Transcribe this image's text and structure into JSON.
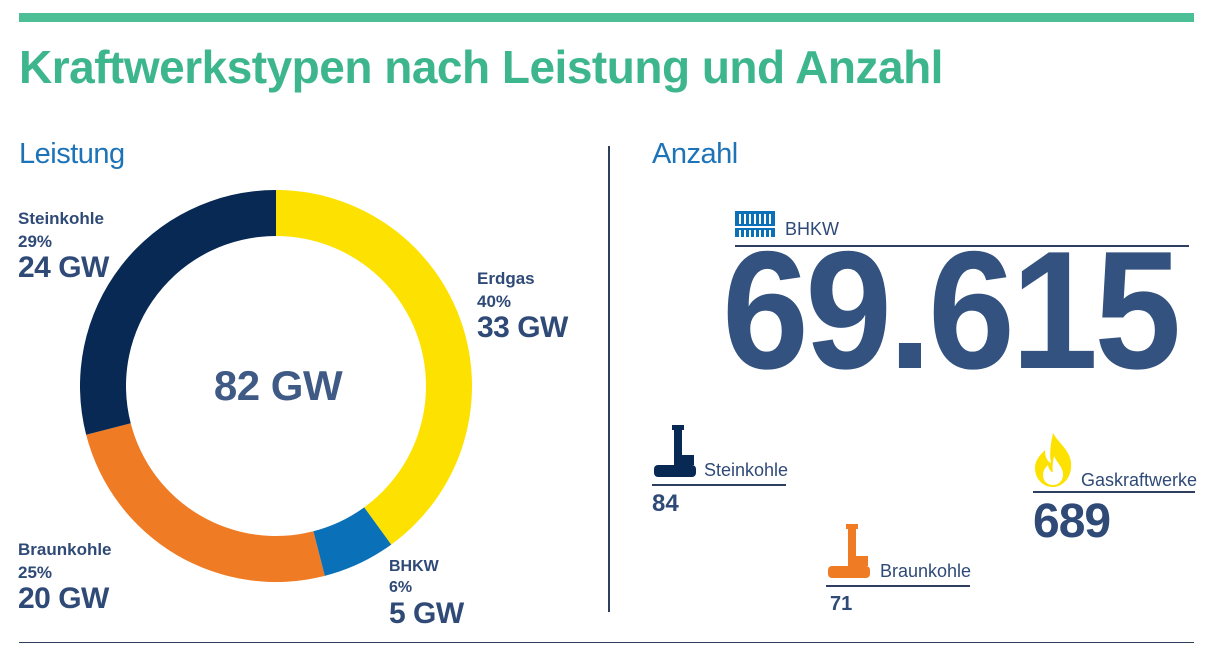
{
  "title": "Kraftwerkstypen nach Leistung und Anzahl",
  "left_heading": "Leistung",
  "right_heading": "Anzahl",
  "colors": {
    "Erdgas": "#fde100",
    "BHKW": "#0a70b8",
    "Braunkohle": "#ef7b24",
    "Steinkohle": "#092955",
    "accent": "#3db68e",
    "text": "#2f4a77"
  },
  "chart_data": [
    {
      "type": "pie",
      "subtitle": "Leistung",
      "center_label": "82 GW",
      "slices": [
        {
          "name": "Erdgas",
          "percent": 40,
          "value": 33,
          "percent_label": "40%",
          "value_label": "33 GW"
        },
        {
          "name": "BHKW",
          "percent": 6,
          "value": 5,
          "percent_label": "6%",
          "value_label": "5 GW"
        },
        {
          "name": "Braunkohle",
          "percent": 25,
          "value": 20,
          "percent_label": "25%",
          "value_label": "20 GW"
        },
        {
          "name": "Steinkohle",
          "percent": 29,
          "value": 24,
          "percent_label": "29%",
          "value_label": "24 GW"
        }
      ]
    },
    {
      "type": "table",
      "subtitle": "Anzahl",
      "items": [
        {
          "name": "BHKW",
          "value": "69.615",
          "icon": "bhkw-icon"
        },
        {
          "name": "Steinkohle",
          "value": "84",
          "icon": "coal-plant-icon"
        },
        {
          "name": "Braunkohle",
          "value": "71",
          "icon": "lignite-plant-icon"
        },
        {
          "name": "Gaskraftwerke",
          "value": "689",
          "icon": "flame-icon"
        }
      ]
    }
  ]
}
